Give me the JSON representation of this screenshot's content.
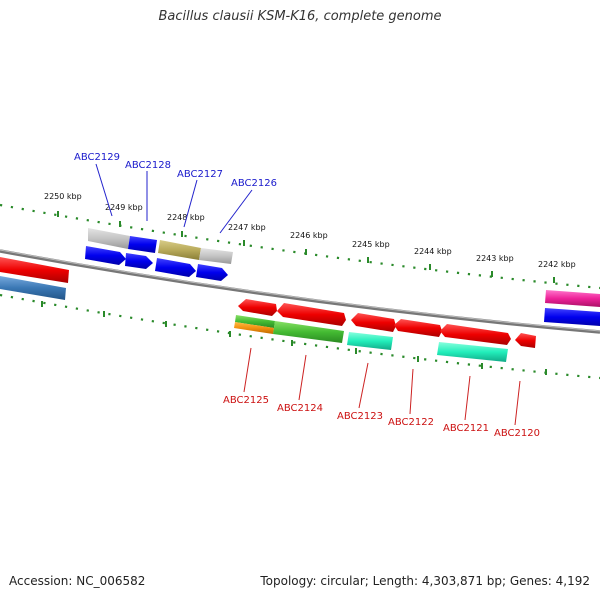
{
  "title": "Bacillus clausii KSM-K16, complete genome",
  "footer": {
    "accession": "Accession: NC_006582",
    "topology": "Topology: circular; Length: 4,303,871 bp; Genes: 4,192"
  },
  "colors": {
    "backbone": "#888888",
    "ruler": "#2a8a2a",
    "label_top": "#1a1acc",
    "label_bottom": "#cc1111"
  },
  "ruler_labels": [
    {
      "id": "2250",
      "text": "2250 kbp"
    },
    {
      "id": "2249",
      "text": "2249 kbp"
    },
    {
      "id": "2248",
      "text": "2248 kbp"
    },
    {
      "id": "2247",
      "text": "2247 kbp"
    },
    {
      "id": "2246",
      "text": "2246 kbp"
    },
    {
      "id": "2245",
      "text": "2245 kbp"
    },
    {
      "id": "2244",
      "text": "2244 kbp"
    },
    {
      "id": "2243",
      "text": "2243 kbp"
    },
    {
      "id": "2242",
      "text": "2242 kbp"
    }
  ],
  "gene_labels_top": [
    {
      "id": "abc2129",
      "text": "ABC2129"
    },
    {
      "id": "abc2128",
      "text": "ABC2128"
    },
    {
      "id": "abc2127",
      "text": "ABC2127"
    },
    {
      "id": "abc2126",
      "text": "ABC2126"
    }
  ],
  "gene_labels_bottom": [
    {
      "id": "abc2125",
      "text": "ABC2125"
    },
    {
      "id": "abc2124",
      "text": "ABC2124"
    },
    {
      "id": "abc2123",
      "text": "ABC2123"
    },
    {
      "id": "abc2122",
      "text": "ABC2122"
    },
    {
      "id": "abc2121",
      "text": "ABC2121"
    },
    {
      "id": "abc2120",
      "text": "ABC2120"
    }
  ]
}
